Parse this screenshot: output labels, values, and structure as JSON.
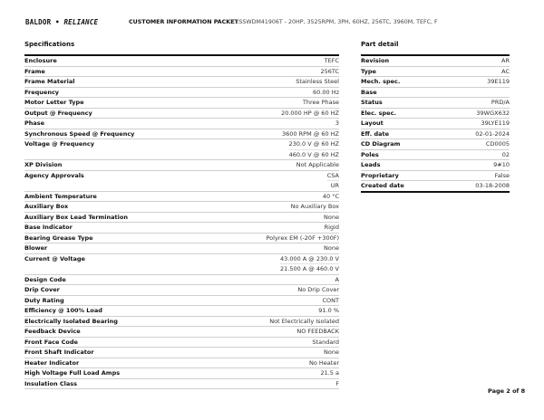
{
  "header": {
    "brand": "BALDOR",
    "brand2": "RELIANCE",
    "title": "CUSTOMER INFORMATION PACKET",
    "description": "CESSWDM41906T - 20HP, 3525RPM, 3PH, 60HZ, 256TC, 3960M, TEFC, F"
  },
  "specifications": {
    "title": "Specifications",
    "rows": [
      {
        "label": "Enclosure",
        "values": [
          "TEFC"
        ]
      },
      {
        "label": "Frame",
        "values": [
          "256TC"
        ]
      },
      {
        "label": "Frame Material",
        "values": [
          "Stainless Steel"
        ]
      },
      {
        "label": "Frequency",
        "values": [
          "60.00 Hz"
        ]
      },
      {
        "label": "Motor Letter Type",
        "values": [
          "Three Phase"
        ]
      },
      {
        "label": "Output @ Frequency",
        "values": [
          "20.000 HP @ 60 HZ"
        ]
      },
      {
        "label": "Phase",
        "values": [
          "3"
        ]
      },
      {
        "label": "Synchronous Speed @ Frequency",
        "values": [
          "3600 RPM @ 60 HZ"
        ]
      },
      {
        "label": "Voltage @ Frequency",
        "values": [
          "230.0 V @ 60 HZ",
          "460.0 V @ 60 HZ"
        ]
      },
      {
        "label": "XP Division",
        "values": [
          "Not Applicable"
        ]
      },
      {
        "label": "Agency Approvals",
        "values": [
          "CSA",
          "UR"
        ]
      },
      {
        "label": "Ambient Temperature",
        "values": [
          "40 °C"
        ]
      },
      {
        "label": "Auxiliary Box",
        "values": [
          "No Auxiliary Box"
        ]
      },
      {
        "label": "Auxiliary Box Lead Termination",
        "values": [
          "None"
        ]
      },
      {
        "label": "Base Indicator",
        "values": [
          "Rigid"
        ]
      },
      {
        "label": "Bearing Grease Type",
        "values": [
          "Polyrex EM (-20F +300F)"
        ]
      },
      {
        "label": "Blower",
        "values": [
          "None"
        ]
      },
      {
        "label": "Current @ Voltage",
        "values": [
          "43.000 A @ 230.0 V",
          "21.500 A @ 460.0 V"
        ]
      },
      {
        "label": "Design Code",
        "values": [
          "A"
        ]
      },
      {
        "label": "Drip Cover",
        "values": [
          "No Drip Cover"
        ]
      },
      {
        "label": "Duty Rating",
        "values": [
          "CONT"
        ]
      },
      {
        "label": "Efficiency @ 100% Load",
        "values": [
          "91.0 %"
        ]
      },
      {
        "label": "Electrically Isolated Bearing",
        "values": [
          "Not Electrically Isolated"
        ]
      },
      {
        "label": "Feedback Device",
        "values": [
          "NO FEEDBACK"
        ]
      },
      {
        "label": "Front Face Code",
        "values": [
          "Standard"
        ]
      },
      {
        "label": "Front Shaft Indicator",
        "values": [
          "None"
        ]
      },
      {
        "label": "Heater Indicator",
        "values": [
          "No Heater"
        ]
      },
      {
        "label": "High Voltage Full Load Amps",
        "values": [
          "21.5 a"
        ]
      },
      {
        "label": "Insulation Class",
        "values": [
          "F"
        ]
      }
    ]
  },
  "part_detail": {
    "title": "Part detail",
    "rows": [
      {
        "label": "Revision",
        "values": [
          "AR"
        ]
      },
      {
        "label": "Type",
        "values": [
          "AC"
        ]
      },
      {
        "label": "Mech. spec.",
        "values": [
          "39E119"
        ]
      },
      {
        "label": "Base",
        "values": [
          ""
        ]
      },
      {
        "label": "Status",
        "values": [
          "PRD/A"
        ]
      },
      {
        "label": "Elec. spec.",
        "values": [
          "39WGX632"
        ]
      },
      {
        "label": "Layout",
        "values": [
          "39LYE119"
        ]
      },
      {
        "label": "Eff. date",
        "values": [
          "02-01-2024"
        ]
      },
      {
        "label": "CD Diagram",
        "values": [
          "CD0005"
        ]
      },
      {
        "label": "Poles",
        "values": [
          "02"
        ]
      },
      {
        "label": "Leads",
        "values": [
          "9#10"
        ]
      },
      {
        "label": "Proprietary",
        "values": [
          "False"
        ]
      },
      {
        "label": "Created date",
        "values": [
          "03-18-2008"
        ]
      }
    ]
  },
  "footer": {
    "page": "Page 2 of 8"
  }
}
